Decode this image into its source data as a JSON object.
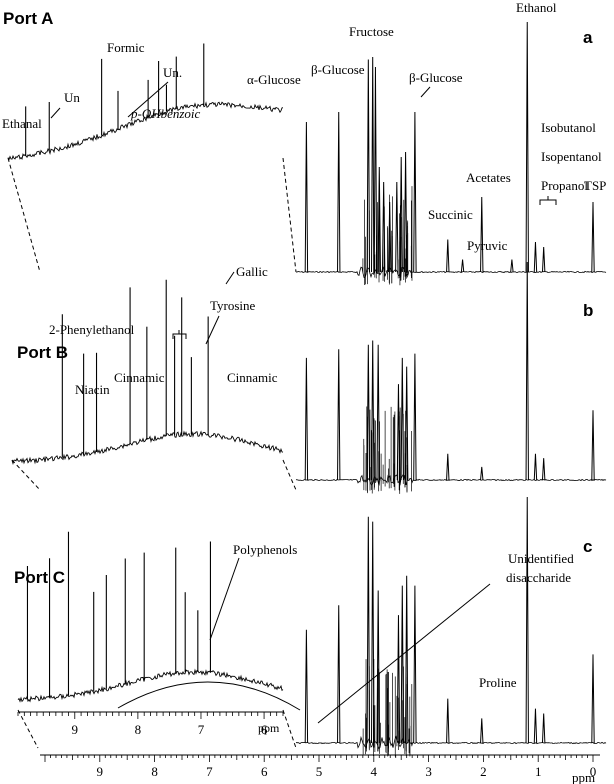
{
  "chart_data": [
    {
      "type": "line",
      "panel": "a",
      "title": "Port A",
      "x_unit": "ppm",
      "x_range": [
        0,
        10
      ],
      "spectrum_peaks_ppm": [
        {
          "ppm": 5.23,
          "rel_height": 0.6
        },
        {
          "ppm": 4.64,
          "rel_height": 0.64
        },
        {
          "ppm": 4.1,
          "rel_height": 0.85
        },
        {
          "ppm": 4.02,
          "rel_height": 0.86
        },
        {
          "ppm": 3.97,
          "rel_height": 0.82
        },
        {
          "ppm": 3.9,
          "rel_height": 0.42
        },
        {
          "ppm": 3.82,
          "rel_height": 0.36
        },
        {
          "ppm": 3.71,
          "rel_height": 0.28
        },
        {
          "ppm": 3.58,
          "rel_height": 0.36
        },
        {
          "ppm": 3.5,
          "rel_height": 0.46
        },
        {
          "ppm": 3.42,
          "rel_height": 0.48
        },
        {
          "ppm": 3.25,
          "rel_height": 0.64
        },
        {
          "ppm": 2.65,
          "rel_height": 0.13
        },
        {
          "ppm": 2.38,
          "rel_height": 0.05
        },
        {
          "ppm": 2.03,
          "rel_height": 0.3
        },
        {
          "ppm": 1.48,
          "rel_height": 0.05
        },
        {
          "ppm": 1.2,
          "rel_height": 1.0
        },
        {
          "ppm": 1.05,
          "rel_height": 0.12
        },
        {
          "ppm": 0.9,
          "rel_height": 0.1
        },
        {
          "ppm": 0.0,
          "rel_height": 0.28
        }
      ],
      "inset_x_range": [
        5.7,
        9.9
      ],
      "inset_peaks_ppm": [
        9.63,
        9.27,
        8.47,
        8.22,
        7.76,
        7.6,
        7.48,
        7.33,
        6.91
      ],
      "annotations": [
        "Ethanal",
        "Un",
        "Formic",
        "Un.",
        "p-OHbenzoic",
        "α-Glucose",
        "β-Glucose",
        "Fructose",
        "β-Glucose",
        "Ethanol",
        "Acetates",
        "Succinic",
        "Pyruvic",
        "Isobutanol",
        "Isopentanol",
        "Propanol",
        "TSP"
      ]
    },
    {
      "type": "line",
      "panel": "b",
      "title": "Port B",
      "x_unit": "ppm",
      "x_range": [
        0,
        10
      ],
      "spectrum_peaks_ppm": [
        {
          "ppm": 5.23,
          "rel_height": 0.56
        },
        {
          "ppm": 4.64,
          "rel_height": 0.6
        },
        {
          "ppm": 4.1,
          "rel_height": 0.62
        },
        {
          "ppm": 4.02,
          "rel_height": 0.64
        },
        {
          "ppm": 3.92,
          "rel_height": 0.62
        },
        {
          "ppm": 3.55,
          "rel_height": 0.44
        },
        {
          "ppm": 3.48,
          "rel_height": 0.56
        },
        {
          "ppm": 3.4,
          "rel_height": 0.52
        },
        {
          "ppm": 3.25,
          "rel_height": 0.58
        },
        {
          "ppm": 2.65,
          "rel_height": 0.12
        },
        {
          "ppm": 2.03,
          "rel_height": 0.06
        },
        {
          "ppm": 1.2,
          "rel_height": 1.0
        },
        {
          "ppm": 1.05,
          "rel_height": 0.12
        },
        {
          "ppm": 0.9,
          "rel_height": 0.1
        },
        {
          "ppm": 0.0,
          "rel_height": 0.32
        }
      ],
      "inset_x_range": [
        5.7,
        9.9
      ],
      "inset_peaks_ppm": [
        9.12,
        8.79,
        8.59,
        8.07,
        7.81,
        7.51,
        7.38,
        7.27,
        7.12,
        6.86
      ],
      "annotations": [
        "2-Phenylethanol",
        "Gallic",
        "Tyrosine",
        "Niacin",
        "Cinnamic",
        "Cinnamic"
      ]
    },
    {
      "type": "line",
      "panel": "c",
      "title": "Port C",
      "x_unit": "ppm",
      "x_range": [
        0,
        10
      ],
      "spectrum_peaks_ppm": [
        {
          "ppm": 5.23,
          "rel_height": 0.46
        },
        {
          "ppm": 4.64,
          "rel_height": 0.56
        },
        {
          "ppm": 4.1,
          "rel_height": 0.92
        },
        {
          "ppm": 4.02,
          "rel_height": 0.9
        },
        {
          "ppm": 3.92,
          "rel_height": 0.62
        },
        {
          "ppm": 3.55,
          "rel_height": 0.52
        },
        {
          "ppm": 3.48,
          "rel_height": 0.64
        },
        {
          "ppm": 3.4,
          "rel_height": 0.68
        },
        {
          "ppm": 3.25,
          "rel_height": 0.64
        },
        {
          "ppm": 2.65,
          "rel_height": 0.18
        },
        {
          "ppm": 2.03,
          "rel_height": 0.1
        },
        {
          "ppm": 1.2,
          "rel_height": 1.0
        },
        {
          "ppm": 1.05,
          "rel_height": 0.14
        },
        {
          "ppm": 0.9,
          "rel_height": 0.12
        },
        {
          "ppm": 0.0,
          "rel_height": 0.36
        }
      ],
      "inset_x_range": [
        5.7,
        9.9
      ],
      "inset_peaks_ppm": [
        9.75,
        9.4,
        9.1,
        8.7,
        8.5,
        8.2,
        7.9,
        7.4,
        7.25,
        7.05,
        6.85
      ],
      "annotations": [
        "Polyphenols",
        "Unidentified",
        "disaccharide",
        "Proline"
      ]
    }
  ],
  "panels": {
    "a": {
      "title": "Port A",
      "letter": "a"
    },
    "b": {
      "title": "Port B",
      "letter": "b"
    },
    "c": {
      "title": "Port C",
      "letter": "c"
    }
  },
  "labels": {
    "a": [
      "Ethanal",
      "Un",
      "Formic",
      "Un.",
      "p-OHbenzoic",
      "α-Glucose",
      "β-Glucose",
      "Fructose",
      "β-Glucose",
      "Ethanol",
      "Acetates",
      "Succinic",
      "Pyruvic",
      "Isobutanol",
      "Isopentanol",
      "Propanol",
      "TSP"
    ],
    "b": [
      "2-Phenylethanol",
      "Gallic",
      "Tyrosine",
      "Niacin",
      "Cinnamic",
      "Cinnamic"
    ],
    "c": [
      "Polyphenols",
      "Unidentified",
      "disaccharide",
      "Proline"
    ]
  },
  "main_axis": {
    "ticks": [
      "9",
      "8",
      "7",
      "6",
      "5",
      "4",
      "3",
      "2",
      "1",
      "0"
    ],
    "unit": "ppm"
  },
  "inset_axis": {
    "ticks": [
      "9",
      "8",
      "7",
      "6"
    ],
    "unit": "ppm"
  },
  "colors": {
    "line": "#000000",
    "background": "#ffffff"
  }
}
